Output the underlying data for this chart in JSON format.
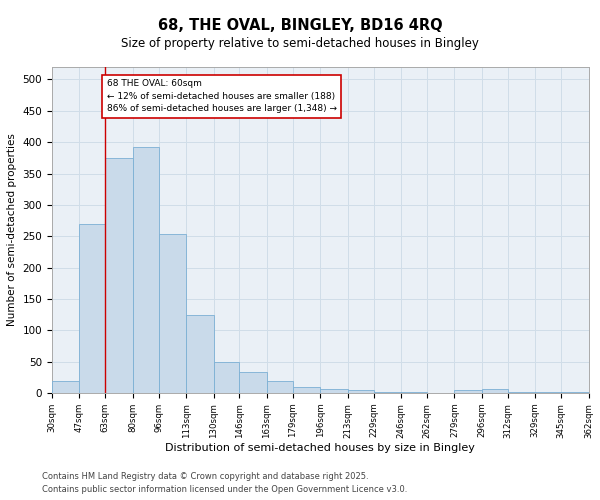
{
  "title": "68, THE OVAL, BINGLEY, BD16 4RQ",
  "subtitle": "Size of property relative to semi-detached houses in Bingley",
  "xlabel": "Distribution of semi-detached houses by size in Bingley",
  "ylabel": "Number of semi-detached properties",
  "bar_color": "#c9daea",
  "bar_edge_color": "#7bafd4",
  "grid_color": "#d0dde8",
  "background_color": "#eaf0f6",
  "vline_x": 63,
  "vline_color": "#cc0000",
  "annotation_text": "68 THE OVAL: 60sqm\n← 12% of semi-detached houses are smaller (188)\n86% of semi-detached houses are larger (1,348) →",
  "annotation_box_color": "#cc0000",
  "footnote1": "Contains HM Land Registry data © Crown copyright and database right 2025.",
  "footnote2": "Contains public sector information licensed under the Open Government Licence v3.0.",
  "bins": [
    30,
    47,
    63,
    80,
    96,
    113,
    130,
    146,
    163,
    179,
    196,
    213,
    229,
    246,
    262,
    279,
    296,
    312,
    329,
    345,
    362
  ],
  "counts": [
    19,
    270,
    375,
    393,
    253,
    124,
    50,
    33,
    19,
    9,
    6,
    4,
    2,
    1,
    0,
    5,
    7,
    2,
    1,
    1
  ],
  "ylim": [
    0,
    520
  ],
  "yticks": [
    0,
    50,
    100,
    150,
    200,
    250,
    300,
    350,
    400,
    450,
    500
  ]
}
